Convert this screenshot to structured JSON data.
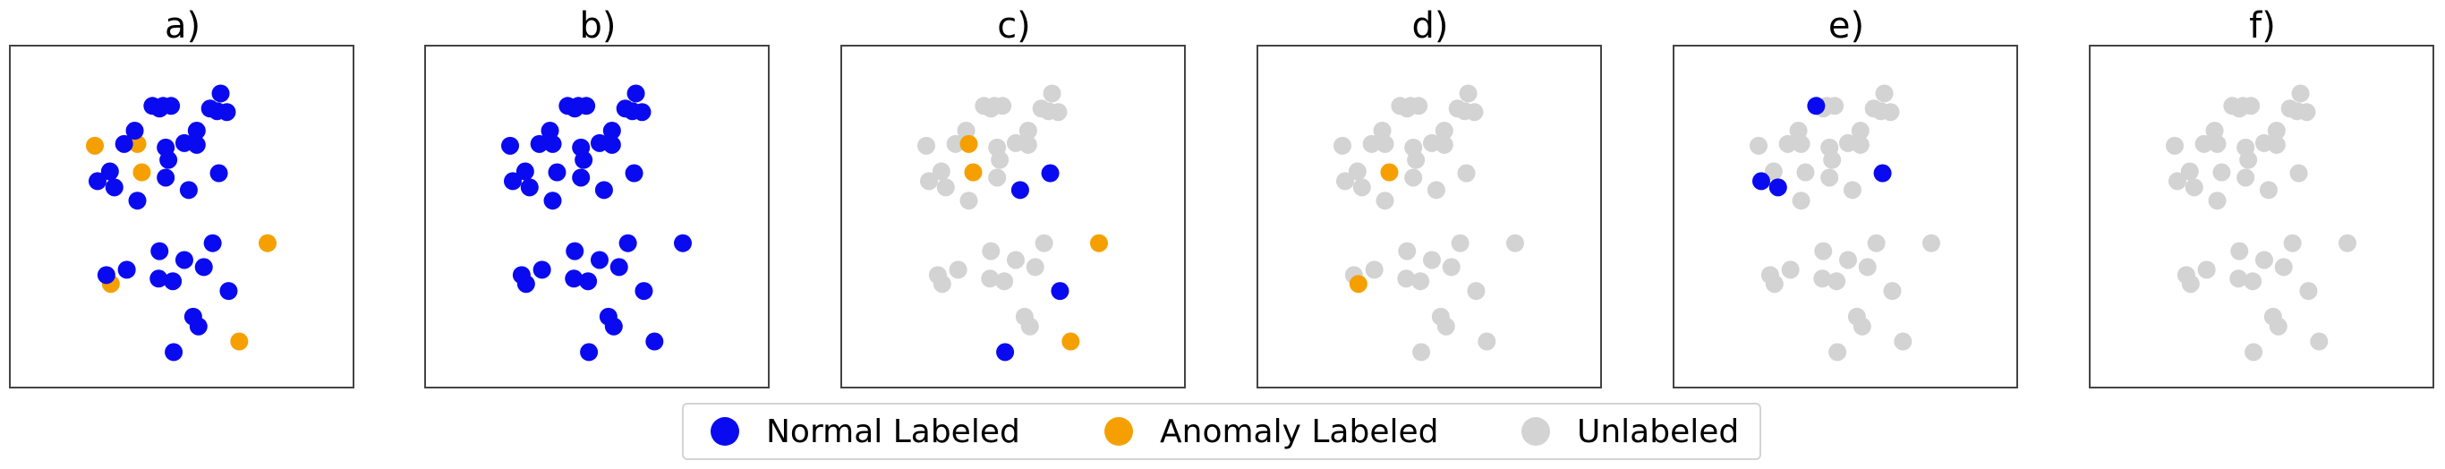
{
  "colors": {
    "normal": "#0a0af0",
    "anomaly": "#f5a000",
    "unlabeled": "#d3d3d3"
  },
  "legend": {
    "items": [
      {
        "label": "Normal Labeled",
        "color": "#0a0af0"
      },
      {
        "label": "Anomaly Labeled",
        "color": "#f5a000"
      },
      {
        "label": "Unlabeled",
        "color": "#d3d3d3"
      }
    ]
  },
  "chart_data": {
    "type": "scatter",
    "xlim": [
      0,
      386
    ],
    "ylim": [
      0,
      384
    ],
    "points": [
      [
        237,
        53
      ],
      [
        160,
        67
      ],
      [
        172,
        67
      ],
      [
        181,
        67
      ],
      [
        168,
        70
      ],
      [
        225,
        70
      ],
      [
        233,
        73
      ],
      [
        244,
        74
      ],
      [
        140,
        95
      ],
      [
        210,
        95
      ],
      [
        196,
        109
      ],
      [
        128,
        110
      ],
      [
        143,
        110
      ],
      [
        210,
        111
      ],
      [
        95,
        112
      ],
      [
        175,
        114
      ],
      [
        178,
        128
      ],
      [
        112,
        141
      ],
      [
        148,
        142
      ],
      [
        235,
        143
      ],
      [
        175,
        148
      ],
      [
        98,
        152
      ],
      [
        117,
        159
      ],
      [
        201,
        162
      ],
      [
        143,
        174
      ],
      [
        228,
        222
      ],
      [
        168,
        231
      ],
      [
        196,
        241
      ],
      [
        218,
        249
      ],
      [
        131,
        252
      ],
      [
        167,
        262
      ],
      [
        183,
        265
      ],
      [
        108,
        258
      ],
      [
        113,
        268
      ],
      [
        246,
        276
      ],
      [
        290,
        222
      ],
      [
        206,
        305
      ],
      [
        212,
        316
      ],
      [
        258,
        333
      ],
      [
        184,
        345
      ]
    ],
    "panels": [
      {
        "title": "a)",
        "colors": [
          "n",
          "n",
          "n",
          "n",
          "n",
          "n",
          "n",
          "n",
          "n",
          "n",
          "n",
          "n",
          "a",
          "n",
          "a",
          "n",
          "n",
          "n",
          "a",
          "n",
          "n",
          "n",
          "n",
          "n",
          "n",
          "n",
          "n",
          "n",
          "n",
          "n",
          "n",
          "n",
          "n",
          "a",
          "n",
          "a",
          "n",
          "n",
          "a",
          "n"
        ]
      },
      {
        "title": "b)",
        "colors": [
          "n",
          "n",
          "n",
          "n",
          "n",
          "n",
          "n",
          "n",
          "n",
          "n",
          "n",
          "n",
          "n",
          "n",
          "n",
          "n",
          "n",
          "n",
          "n",
          "n",
          "n",
          "n",
          "n",
          "n",
          "n",
          "n",
          "n",
          "n",
          "n",
          "n",
          "n",
          "n",
          "n",
          "n",
          "n",
          "n",
          "n",
          "n",
          "n",
          "n"
        ]
      },
      {
        "title": "c)",
        "colors": [
          "u",
          "u",
          "u",
          "u",
          "u",
          "u",
          "u",
          "u",
          "u",
          "u",
          "u",
          "u",
          "a",
          "u",
          "u",
          "u",
          "u",
          "u",
          "a",
          "n",
          "u",
          "u",
          "u",
          "n",
          "u",
          "u",
          "u",
          "u",
          "u",
          "u",
          "u",
          "u",
          "u",
          "u",
          "n",
          "a",
          "u",
          "u",
          "a",
          "n"
        ]
      },
      {
        "title": "d)",
        "colors": [
          "u",
          "u",
          "u",
          "u",
          "u",
          "u",
          "u",
          "u",
          "u",
          "u",
          "u",
          "u",
          "u",
          "u",
          "u",
          "u",
          "u",
          "u",
          "a",
          "u",
          "u",
          "u",
          "u",
          "u",
          "u",
          "u",
          "u",
          "u",
          "u",
          "u",
          "u",
          "u",
          "u",
          "a",
          "u",
          "u",
          "u",
          "u",
          "u",
          "u"
        ]
      },
      {
        "title": "e)",
        "colors": [
          "u",
          "n",
          "u",
          "u",
          "u",
          "u",
          "u",
          "u",
          "u",
          "u",
          "u",
          "u",
          "u",
          "u",
          "u",
          "u",
          "u",
          "u",
          "u",
          "n",
          "u",
          "n",
          "n",
          "u",
          "u",
          "u",
          "u",
          "u",
          "u",
          "u",
          "u",
          "u",
          "u",
          "u",
          "u",
          "u",
          "u",
          "u",
          "u",
          "u"
        ]
      },
      {
        "title": "f)",
        "colors": [
          "u",
          "u",
          "u",
          "u",
          "u",
          "u",
          "u",
          "u",
          "u",
          "u",
          "u",
          "u",
          "u",
          "u",
          "u",
          "u",
          "u",
          "u",
          "u",
          "u",
          "u",
          "u",
          "u",
          "u",
          "u",
          "u",
          "u",
          "u",
          "u",
          "u",
          "u",
          "u",
          "u",
          "u",
          "u",
          "u",
          "u",
          "u",
          "u",
          "u"
        ]
      }
    ]
  }
}
